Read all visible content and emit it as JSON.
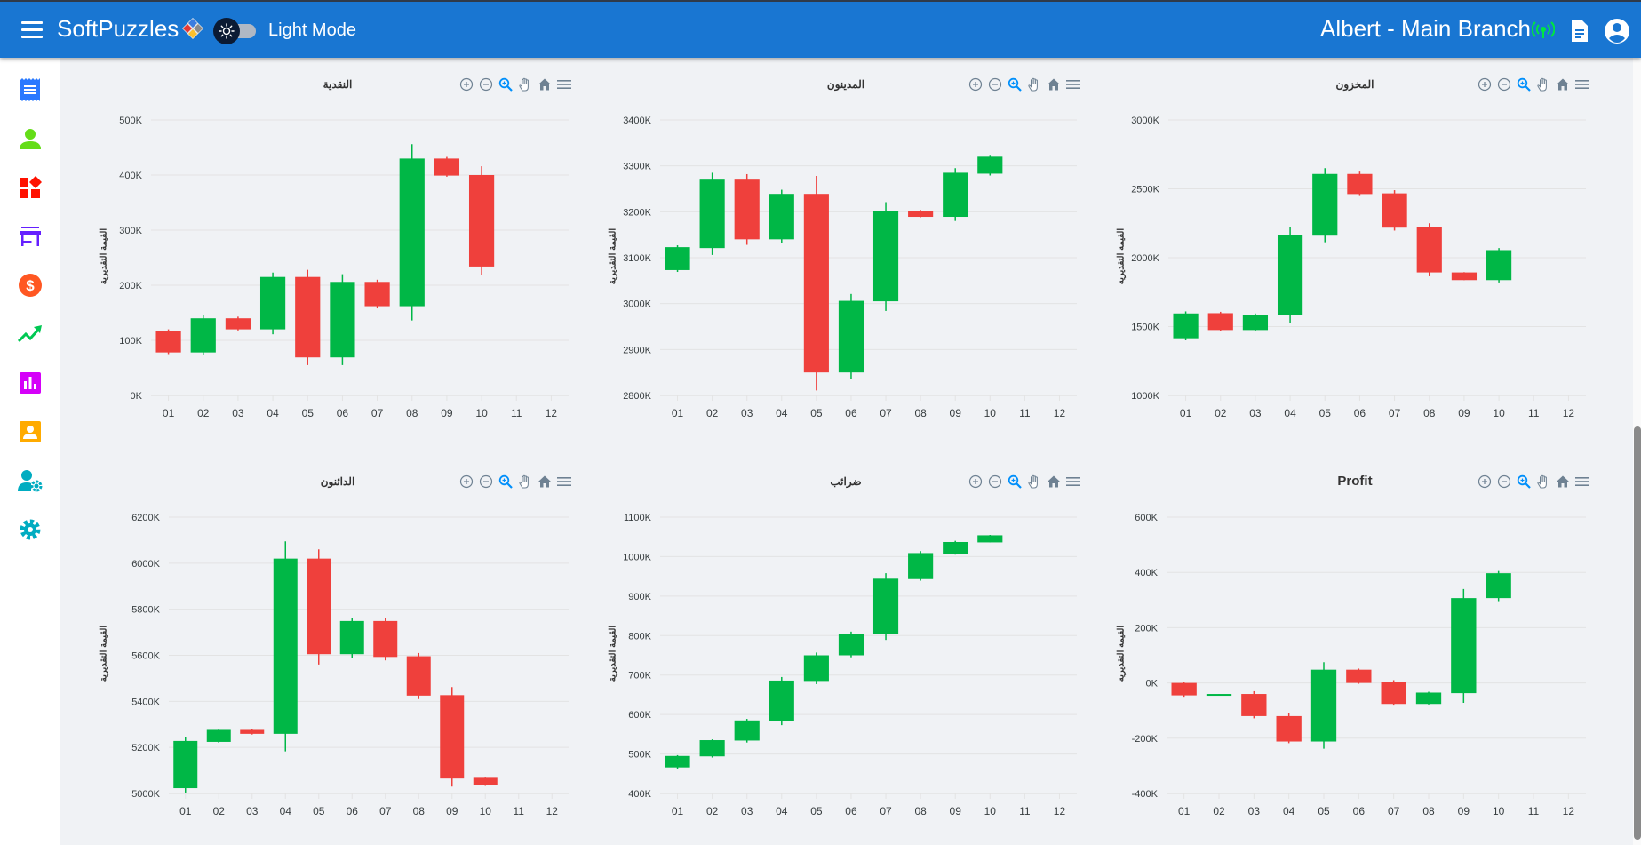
{
  "header": {
    "brand": "SoftPuzzles",
    "mode_label": "Light Mode",
    "user_label": "Albert - Main Branch",
    "icons": [
      "menu-icon",
      "logo-icon",
      "sun-icon",
      "signal-icon",
      "document-icon",
      "account-icon"
    ]
  },
  "sidebar": {
    "items": [
      {
        "name": "receipt",
        "icon": "receipt-icon",
        "color": "#2979ff"
      },
      {
        "name": "customers",
        "icon": "person-icon",
        "color": "#64dd17"
      },
      {
        "name": "categories",
        "icon": "widgets-icon",
        "color": "#ff1100"
      },
      {
        "name": "store",
        "icon": "store-icon",
        "color": "#651fff"
      },
      {
        "name": "payments",
        "icon": "dollar-icon",
        "color": "#ff5722"
      },
      {
        "name": "trends",
        "icon": "trending-up-icon",
        "color": "#00c853"
      },
      {
        "name": "reports",
        "icon": "bar-chart-icon",
        "color": "#d500f9"
      },
      {
        "name": "contacts",
        "icon": "contact-card-icon",
        "color": "#ffab00"
      },
      {
        "name": "user-settings",
        "icon": "user-gear-icon",
        "color": "#00acc1"
      },
      {
        "name": "settings",
        "icon": "gear-icon",
        "color": "#00acc1"
      }
    ]
  },
  "colors": {
    "up": "#00b746",
    "down": "#ef403c",
    "grid": "#e3e3e3",
    "topbar": "#1976d2"
  },
  "toolbar_icons": [
    "zoom-in-icon",
    "zoom-out-icon",
    "selection-zoom-icon",
    "pan-hand-icon",
    "reset-home-icon",
    "menu-icon"
  ],
  "chart_data": [
    {
      "type": "candlestick",
      "title": "النقدية",
      "ylabel": "القيمة التقديرية",
      "xlabel": "",
      "categories": [
        "01",
        "02",
        "03",
        "04",
        "05",
        "06",
        "07",
        "08",
        "09",
        "10",
        "11",
        "12"
      ],
      "yticks": [
        "0K",
        "100K",
        "200K",
        "300K",
        "400K",
        "500K"
      ],
      "ylim": [
        0,
        500
      ],
      "unit": "K",
      "ohlc": [
        {
          "x": "01",
          "open": 117,
          "high": 120,
          "low": 75,
          "close": 78
        },
        {
          "x": "02",
          "open": 78,
          "high": 146,
          "low": 73,
          "close": 140
        },
        {
          "x": "03",
          "open": 140,
          "high": 143,
          "low": 118,
          "close": 120
        },
        {
          "x": "04",
          "open": 120,
          "high": 223,
          "low": 111,
          "close": 215
        },
        {
          "x": "05",
          "open": 215,
          "high": 228,
          "low": 55,
          "close": 69
        },
        {
          "x": "06",
          "open": 69,
          "high": 220,
          "low": 55,
          "close": 206
        },
        {
          "x": "07",
          "open": 206,
          "high": 210,
          "low": 158,
          "close": 162
        },
        {
          "x": "08",
          "open": 162,
          "high": 456,
          "low": 136,
          "close": 430
        },
        {
          "x": "09",
          "open": 430,
          "high": 433,
          "low": 397,
          "close": 399
        },
        {
          "x": "10",
          "open": 400,
          "high": 416,
          "low": 219,
          "close": 234
        }
      ]
    },
    {
      "type": "candlestick",
      "title": "المدينون",
      "ylabel": "القيمة التقديرية",
      "xlabel": "",
      "categories": [
        "01",
        "02",
        "03",
        "04",
        "05",
        "06",
        "07",
        "08",
        "09",
        "10",
        "11",
        "12"
      ],
      "yticks": [
        "2800K",
        "2900K",
        "3000K",
        "3100K",
        "3200K",
        "3300K",
        "3400K"
      ],
      "ylim": [
        2800,
        3400
      ],
      "unit": "K",
      "ohlc": [
        {
          "x": "01",
          "open": 3073,
          "high": 3127,
          "low": 3069,
          "close": 3123
        },
        {
          "x": "02",
          "open": 3121,
          "high": 3285,
          "low": 3106,
          "close": 3270
        },
        {
          "x": "03",
          "open": 3270,
          "high": 3282,
          "low": 3128,
          "close": 3140
        },
        {
          "x": "04",
          "open": 3140,
          "high": 3248,
          "low": 3131,
          "close": 3239
        },
        {
          "x": "05",
          "open": 3239,
          "high": 3278,
          "low": 2811,
          "close": 2850
        },
        {
          "x": "06",
          "open": 2850,
          "high": 3021,
          "low": 2836,
          "close": 3006
        },
        {
          "x": "07",
          "open": 3005,
          "high": 3221,
          "low": 2984,
          "close": 3202
        },
        {
          "x": "08",
          "open": 3202,
          "high": 3204,
          "low": 3188,
          "close": 3189
        },
        {
          "x": "09",
          "open": 3189,
          "high": 3295,
          "low": 3180,
          "close": 3285
        },
        {
          "x": "10",
          "open": 3283,
          "high": 3322,
          "low": 3279,
          "close": 3320
        }
      ]
    },
    {
      "type": "candlestick",
      "title": "المخزون",
      "ylabel": "القيمة التقديرية",
      "xlabel": "",
      "categories": [
        "01",
        "02",
        "03",
        "04",
        "05",
        "06",
        "07",
        "08",
        "09",
        "10",
        "11",
        "12"
      ],
      "yticks": [
        "1000K",
        "1500K",
        "2000K",
        "2500K",
        "3000K"
      ],
      "ylim": [
        1000,
        3000
      ],
      "unit": "K",
      "ohlc": [
        {
          "x": "01",
          "open": 1415,
          "high": 1610,
          "low": 1400,
          "close": 1595
        },
        {
          "x": "02",
          "open": 1597,
          "high": 1607,
          "low": 1465,
          "close": 1475
        },
        {
          "x": "03",
          "open": 1475,
          "high": 1595,
          "low": 1465,
          "close": 1583
        },
        {
          "x": "04",
          "open": 1583,
          "high": 2220,
          "low": 1525,
          "close": 2165
        },
        {
          "x": "05",
          "open": 2160,
          "high": 2650,
          "low": 2112,
          "close": 2608
        },
        {
          "x": "06",
          "open": 2608,
          "high": 2625,
          "low": 2448,
          "close": 2462
        },
        {
          "x": "07",
          "open": 2467,
          "high": 2490,
          "low": 2197,
          "close": 2218
        },
        {
          "x": "08",
          "open": 2222,
          "high": 2250,
          "low": 1865,
          "close": 1893
        },
        {
          "x": "09",
          "open": 1893,
          "high": 1895,
          "low": 1837,
          "close": 1837
        },
        {
          "x": "10",
          "open": 1837,
          "high": 2070,
          "low": 1820,
          "close": 2055
        }
      ]
    },
    {
      "type": "candlestick",
      "title": "الدائنون",
      "ylabel": "القيمة التقديرية",
      "xlabel": "",
      "categories": [
        "01",
        "02",
        "03",
        "04",
        "05",
        "06",
        "07",
        "08",
        "09",
        "10",
        "11",
        "12"
      ],
      "yticks": [
        "5000K",
        "5200K",
        "5400K",
        "5600K",
        "5800K",
        "6000K",
        "6200K"
      ],
      "ylim": [
        5000,
        6200
      ],
      "unit": "K",
      "ohlc": [
        {
          "x": "01",
          "open": 5023,
          "high": 5247,
          "low": 5004,
          "close": 5228
        },
        {
          "x": "02",
          "open": 5224,
          "high": 5280,
          "low": 5220,
          "close": 5276
        },
        {
          "x": "03",
          "open": 5276,
          "high": 5278,
          "low": 5256,
          "close": 5259
        },
        {
          "x": "04",
          "open": 5259,
          "high": 6095,
          "low": 5183,
          "close": 6020
        },
        {
          "x": "05",
          "open": 6020,
          "high": 6060,
          "low": 5560,
          "close": 5605
        },
        {
          "x": "06",
          "open": 5605,
          "high": 5762,
          "low": 5590,
          "close": 5749
        },
        {
          "x": "07",
          "open": 5749,
          "high": 5762,
          "low": 5578,
          "close": 5593
        },
        {
          "x": "08",
          "open": 5596,
          "high": 5610,
          "low": 5410,
          "close": 5425
        },
        {
          "x": "09",
          "open": 5427,
          "high": 5462,
          "low": 5030,
          "close": 5065
        },
        {
          "x": "10",
          "open": 5068,
          "high": 5069,
          "low": 5033,
          "close": 5035
        }
      ]
    },
    {
      "type": "candlestick",
      "title": "ضرائب",
      "ylabel": "القيمة التقديرية",
      "xlabel": "",
      "categories": [
        "01",
        "02",
        "03",
        "04",
        "05",
        "06",
        "07",
        "08",
        "09",
        "10",
        "11",
        "12"
      ],
      "yticks": [
        "400K",
        "500K",
        "600K",
        "700K",
        "800K",
        "900K",
        "1000K",
        "1100K"
      ],
      "ylim": [
        400,
        1100
      ],
      "unit": "K",
      "ohlc": [
        {
          "x": "01",
          "open": 466,
          "high": 497,
          "low": 463,
          "close": 495
        },
        {
          "x": "02",
          "open": 494,
          "high": 537,
          "low": 491,
          "close": 535
        },
        {
          "x": "03",
          "open": 534,
          "high": 589,
          "low": 529,
          "close": 585
        },
        {
          "x": "04",
          "open": 584,
          "high": 695,
          "low": 573,
          "close": 686
        },
        {
          "x": "05",
          "open": 685,
          "high": 757,
          "low": 677,
          "close": 750
        },
        {
          "x": "06",
          "open": 750,
          "high": 810,
          "low": 745,
          "close": 804
        },
        {
          "x": "07",
          "open": 804,
          "high": 958,
          "low": 789,
          "close": 944
        },
        {
          "x": "08",
          "open": 943,
          "high": 1014,
          "low": 939,
          "close": 1009
        },
        {
          "x": "09",
          "open": 1007,
          "high": 1040,
          "low": 1005,
          "close": 1037
        },
        {
          "x": "10",
          "open": 1036,
          "high": 1055,
          "low": 1036,
          "close": 1054
        }
      ]
    },
    {
      "type": "candlestick",
      "title": "Profit",
      "ylabel": "القيمة التقديرية",
      "xlabel": "",
      "categories": [
        "01",
        "02",
        "03",
        "04",
        "05",
        "06",
        "07",
        "08",
        "09",
        "10",
        "11",
        "12"
      ],
      "yticks": [
        "-400K",
        "-200K",
        "0K",
        "200K",
        "400K",
        "600K"
      ],
      "ylim": [
        -400,
        600
      ],
      "unit": "K",
      "ohlc": [
        {
          "x": "01",
          "open": 0,
          "high": 3,
          "low": -50,
          "close": -45
        },
        {
          "x": "02",
          "open": -42,
          "high": -40,
          "low": -45,
          "close": -40
        },
        {
          "x": "03",
          "open": -40,
          "high": -30,
          "low": -128,
          "close": -120
        },
        {
          "x": "04",
          "open": -120,
          "high": -110,
          "low": -218,
          "close": -212
        },
        {
          "x": "05",
          "open": -212,
          "high": 75,
          "low": -238,
          "close": 48
        },
        {
          "x": "06",
          "open": 48,
          "high": 52,
          "low": -3,
          "close": 0
        },
        {
          "x": "07",
          "open": 3,
          "high": 10,
          "low": -82,
          "close": -76
        },
        {
          "x": "08",
          "open": -76,
          "high": -32,
          "low": -78,
          "close": -35
        },
        {
          "x": "09",
          "open": -37,
          "high": 340,
          "low": -72,
          "close": 307
        },
        {
          "x": "10",
          "open": 307,
          "high": 405,
          "low": 296,
          "close": 397
        }
      ]
    }
  ]
}
